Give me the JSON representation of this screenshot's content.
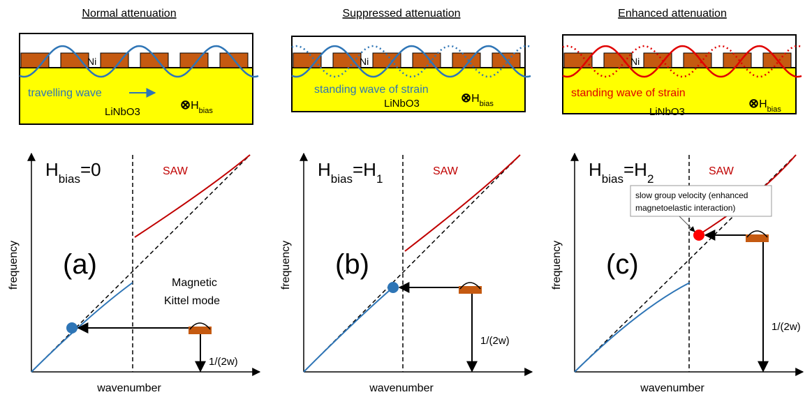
{
  "panels": [
    {
      "title": "Normal attenuation",
      "ni": "Ni",
      "wave_label": "travelling wave",
      "substrate": "LiNbO3",
      "field": {
        "mark": "⊗",
        "symbol": "H",
        "subscript": "bias"
      },
      "condition": {
        "symbol": "H",
        "subscript": "bias",
        "equals": "=0"
      },
      "saw": "SAW",
      "label": "(a)",
      "y_axis": "frequency",
      "x_axis": "wavenumber",
      "period": "1/(2w)",
      "mode": [
        "Magnetic",
        "Kittel mode"
      ]
    },
    {
      "title": "Suppressed attenuation",
      "ni": "Ni",
      "wave_label": "standing wave of strain",
      "substrate": "LiNbO3",
      "field": {
        "mark": "⊗",
        "symbol": "H",
        "subscript": "bias"
      },
      "condition": {
        "symbol": "H",
        "subscript": "bias",
        "equals": "=H",
        "equals_subscript": "1"
      },
      "saw": "SAW",
      "label": "(b)",
      "y_axis": "frequency",
      "x_axis": "wavenumber",
      "period": "1/(2w)"
    },
    {
      "title": "Enhanced attenuation",
      "ni": "Ni",
      "wave_label": "standing wave of strain",
      "substrate": "LiNbO3",
      "field": {
        "mark": "⊗",
        "symbol": "H",
        "subscript": "bias"
      },
      "condition": {
        "symbol": "H",
        "subscript": "bias",
        "equals": "=H",
        "equals_subscript": "2"
      },
      "saw": "SAW",
      "label": "(c)",
      "y_axis": "frequency",
      "x_axis": "wavenumber",
      "period": "1/(2w)",
      "note": [
        "slow group velocity (enhanced",
        "magnetoelastic interaction)"
      ]
    }
  ]
}
